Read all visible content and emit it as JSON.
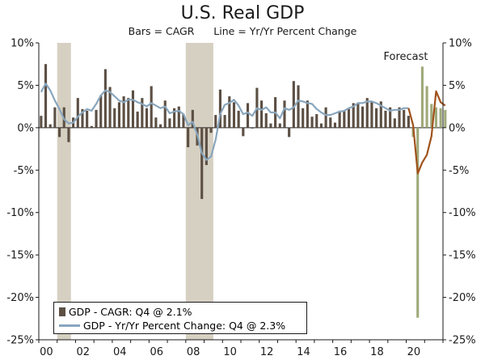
{
  "chart_data": {
    "type": "bar+line",
    "title": "U.S. Real GDP",
    "subtitle": "Bars = CAGR      Line = Yr/Yr Percent Change",
    "annotation": "Forecast",
    "x_tick_labels": [
      "00",
      "02",
      "04",
      "06",
      "08",
      "10",
      "12",
      "14",
      "16",
      "18",
      "20"
    ],
    "y_tick_labels": [
      "10%",
      "5%",
      "0%",
      "-5%",
      "-10%",
      "-15%",
      "-20%",
      "-25%"
    ],
    "ylim": [
      -25,
      10
    ],
    "x_range_quarters": 88,
    "recessions": [
      [
        4,
        7
      ],
      [
        32,
        38
      ]
    ],
    "forecast_start_index": 81,
    "colors": {
      "bars": "#5c4f44",
      "forecast_bars": "#9fa97a",
      "line": "#89a6bd",
      "forecast_line": "#a0521b",
      "recession": "#d6d0c2"
    },
    "legend": [
      {
        "label": "GDP - CAGR: Q4 @ 2.1%"
      },
      {
        "label": "GDP - Yr/Yr Percent Change: Q4 @ 2.3%"
      }
    ],
    "series": [
      {
        "name": "GDP - CAGR",
        "values": [
          1.4,
          7.5,
          0.4,
          2.4,
          -1.1,
          2.4,
          -1.7,
          1.2,
          3.5,
          2.2,
          2.0,
          0.2,
          2.1,
          3.8,
          6.9,
          4.8,
          2.3,
          3.0,
          3.7,
          3.5,
          4.4,
          1.9,
          3.5,
          2.3,
          4.9,
          1.2,
          0.4,
          3.2,
          1.1,
          2.3,
          2.5,
          1.6,
          -2.3,
          2.1,
          -2.1,
          -8.4,
          -4.4,
          -0.6,
          1.5,
          4.5,
          1.5,
          3.7,
          3.0,
          2.0,
          -1.0,
          2.9,
          -0.1,
          4.7,
          3.2,
          1.7,
          0.5,
          3.6,
          0.5,
          3.2,
          -1.1,
          5.5,
          5.0,
          2.3,
          3.2,
          1.3,
          1.6,
          0.5,
          2.4,
          1.2,
          0.6,
          2.0,
          2.0,
          2.2,
          2.9,
          2.8,
          2.5,
          3.5,
          3.0,
          2.3,
          3.1,
          2.0,
          2.4,
          1.1,
          2.4,
          2.1,
          1.4
        ],
        "forecast_values": [
          -1.1,
          -22.4,
          7.2,
          4.9,
          2.8,
          2.4,
          2.3,
          2.1
        ]
      },
      {
        "name": "GDP - Yr/Yr Percent Change",
        "values": [
          4.2,
          5.2,
          4.4,
          3.2,
          2.2,
          1.0,
          0.5,
          0.6,
          1.3,
          1.8,
          2.2,
          2.0,
          2.8,
          3.8,
          4.4,
          4.2,
          3.7,
          3.2,
          3.0,
          3.3,
          3.3,
          3.0,
          2.8,
          2.5,
          2.9,
          2.6,
          2.3,
          2.5,
          1.7,
          1.9,
          2.0,
          1.6,
          0.3,
          0.7,
          -0.8,
          -3.0,
          -3.8,
          -3.4,
          -1.4,
          1.6,
          2.7,
          2.9,
          3.3,
          2.6,
          1.6,
          1.8,
          1.4,
          2.3,
          2.1,
          2.4,
          1.8,
          1.8,
          1.1,
          2.3,
          2.1,
          2.4,
          3.2,
          3.1,
          2.9,
          2.8,
          2.2,
          1.8,
          1.5,
          1.5,
          1.7,
          1.9,
          2.0,
          2.3,
          2.5,
          2.9,
          2.9,
          3.1,
          3.1,
          2.9,
          2.6,
          2.3,
          2.0,
          2.1,
          2.1,
          2.3,
          2.3
        ],
        "forecast_values": [
          0.3,
          -5.4,
          -4.1,
          -3.2,
          -1.0,
          4.3,
          3.0,
          2.6
        ]
      }
    ]
  }
}
